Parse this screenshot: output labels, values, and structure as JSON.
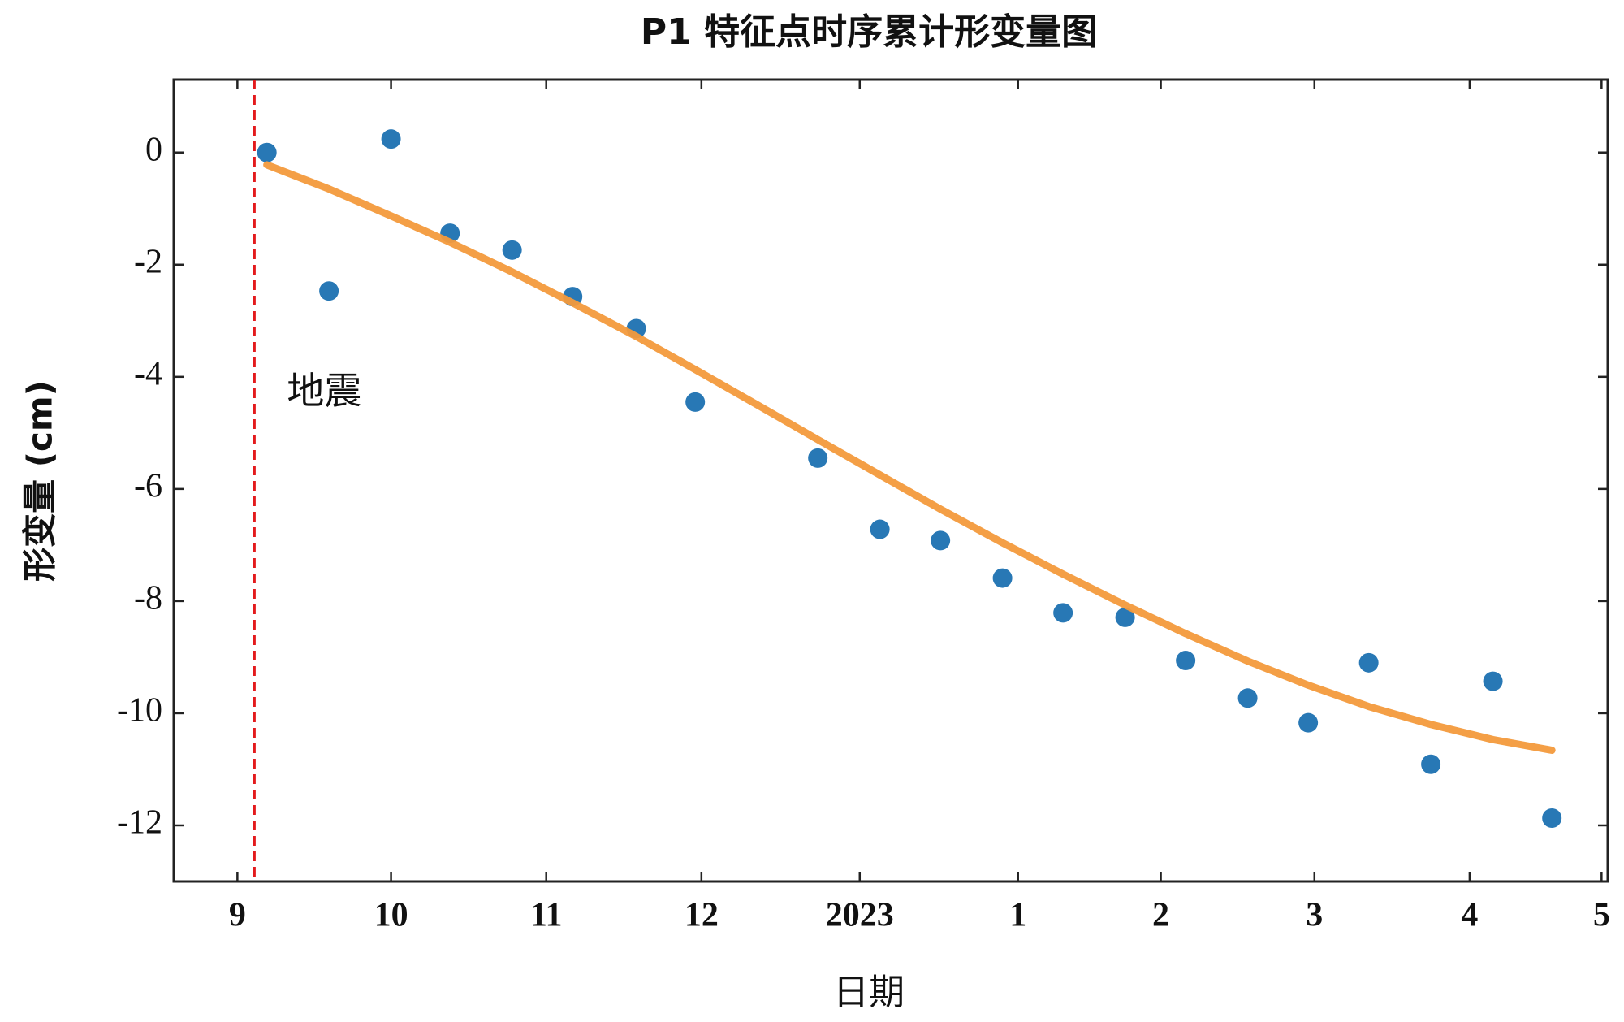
{
  "chart_data": {
    "type": "scatter",
    "title": "P1 特征点时序累计形变量图",
    "x_label": "日期",
    "y_label": "形变量 (cm)",
    "xlim": [
      8.59,
      17.83
    ],
    "ylim": [
      -13,
      1.3
    ],
    "xticks": [
      {
        "value": 9,
        "label": "9"
      },
      {
        "value": 9.99,
        "label": "10"
      },
      {
        "value": 10.99,
        "label": "11"
      },
      {
        "value": 11.99,
        "label": "12"
      },
      {
        "value": 13.01,
        "label": "2023"
      },
      {
        "value": 14.03,
        "label": "1"
      },
      {
        "value": 14.95,
        "label": "2"
      },
      {
        "value": 15.94,
        "label": "3"
      },
      {
        "value": 16.94,
        "label": "4"
      },
      {
        "value": 17.79,
        "label": "5"
      }
    ],
    "yticks": [
      0,
      -2,
      -4,
      -6,
      -8,
      -10,
      -12
    ],
    "grid": false,
    "annotation": {
      "text": "地震",
      "x": 9.11,
      "color": "#e31a1c"
    },
    "series": [
      {
        "type": "scatter",
        "color": "#2878b5",
        "x": [
          9.19,
          9.59,
          9.99,
          10.37,
          10.77,
          11.16,
          11.57,
          11.95,
          12.74,
          13.14,
          13.53,
          13.93,
          14.32,
          14.72,
          15.11,
          15.51,
          15.9,
          16.29,
          16.69,
          17.09,
          17.47
        ],
        "values": [
          0,
          -2.47,
          0.24,
          -1.44,
          -1.74,
          -2.57,
          -3.14,
          -4.45,
          -5.45,
          -6.72,
          -6.92,
          -7.59,
          -8.21,
          -8.29,
          -9.06,
          -9.73,
          -10.17,
          -9.1,
          -10.91,
          -9.43,
          -11.87
        ]
      },
      {
        "type": "line",
        "color": "#f39a3c",
        "x": [
          9.19,
          9.59,
          9.99,
          10.37,
          10.77,
          11.16,
          11.57,
          11.95,
          12.35,
          12.74,
          13.14,
          13.53,
          13.93,
          14.32,
          14.72,
          15.11,
          15.51,
          15.9,
          16.29,
          16.69,
          17.09,
          17.47
        ],
        "values": [
          -0.22,
          -0.65,
          -1.13,
          -1.6,
          -2.13,
          -2.68,
          -3.28,
          -3.87,
          -4.5,
          -5.12,
          -5.75,
          -6.36,
          -6.96,
          -7.52,
          -8.07,
          -8.58,
          -9.07,
          -9.5,
          -9.88,
          -10.2,
          -10.47,
          -10.66
        ]
      }
    ]
  }
}
